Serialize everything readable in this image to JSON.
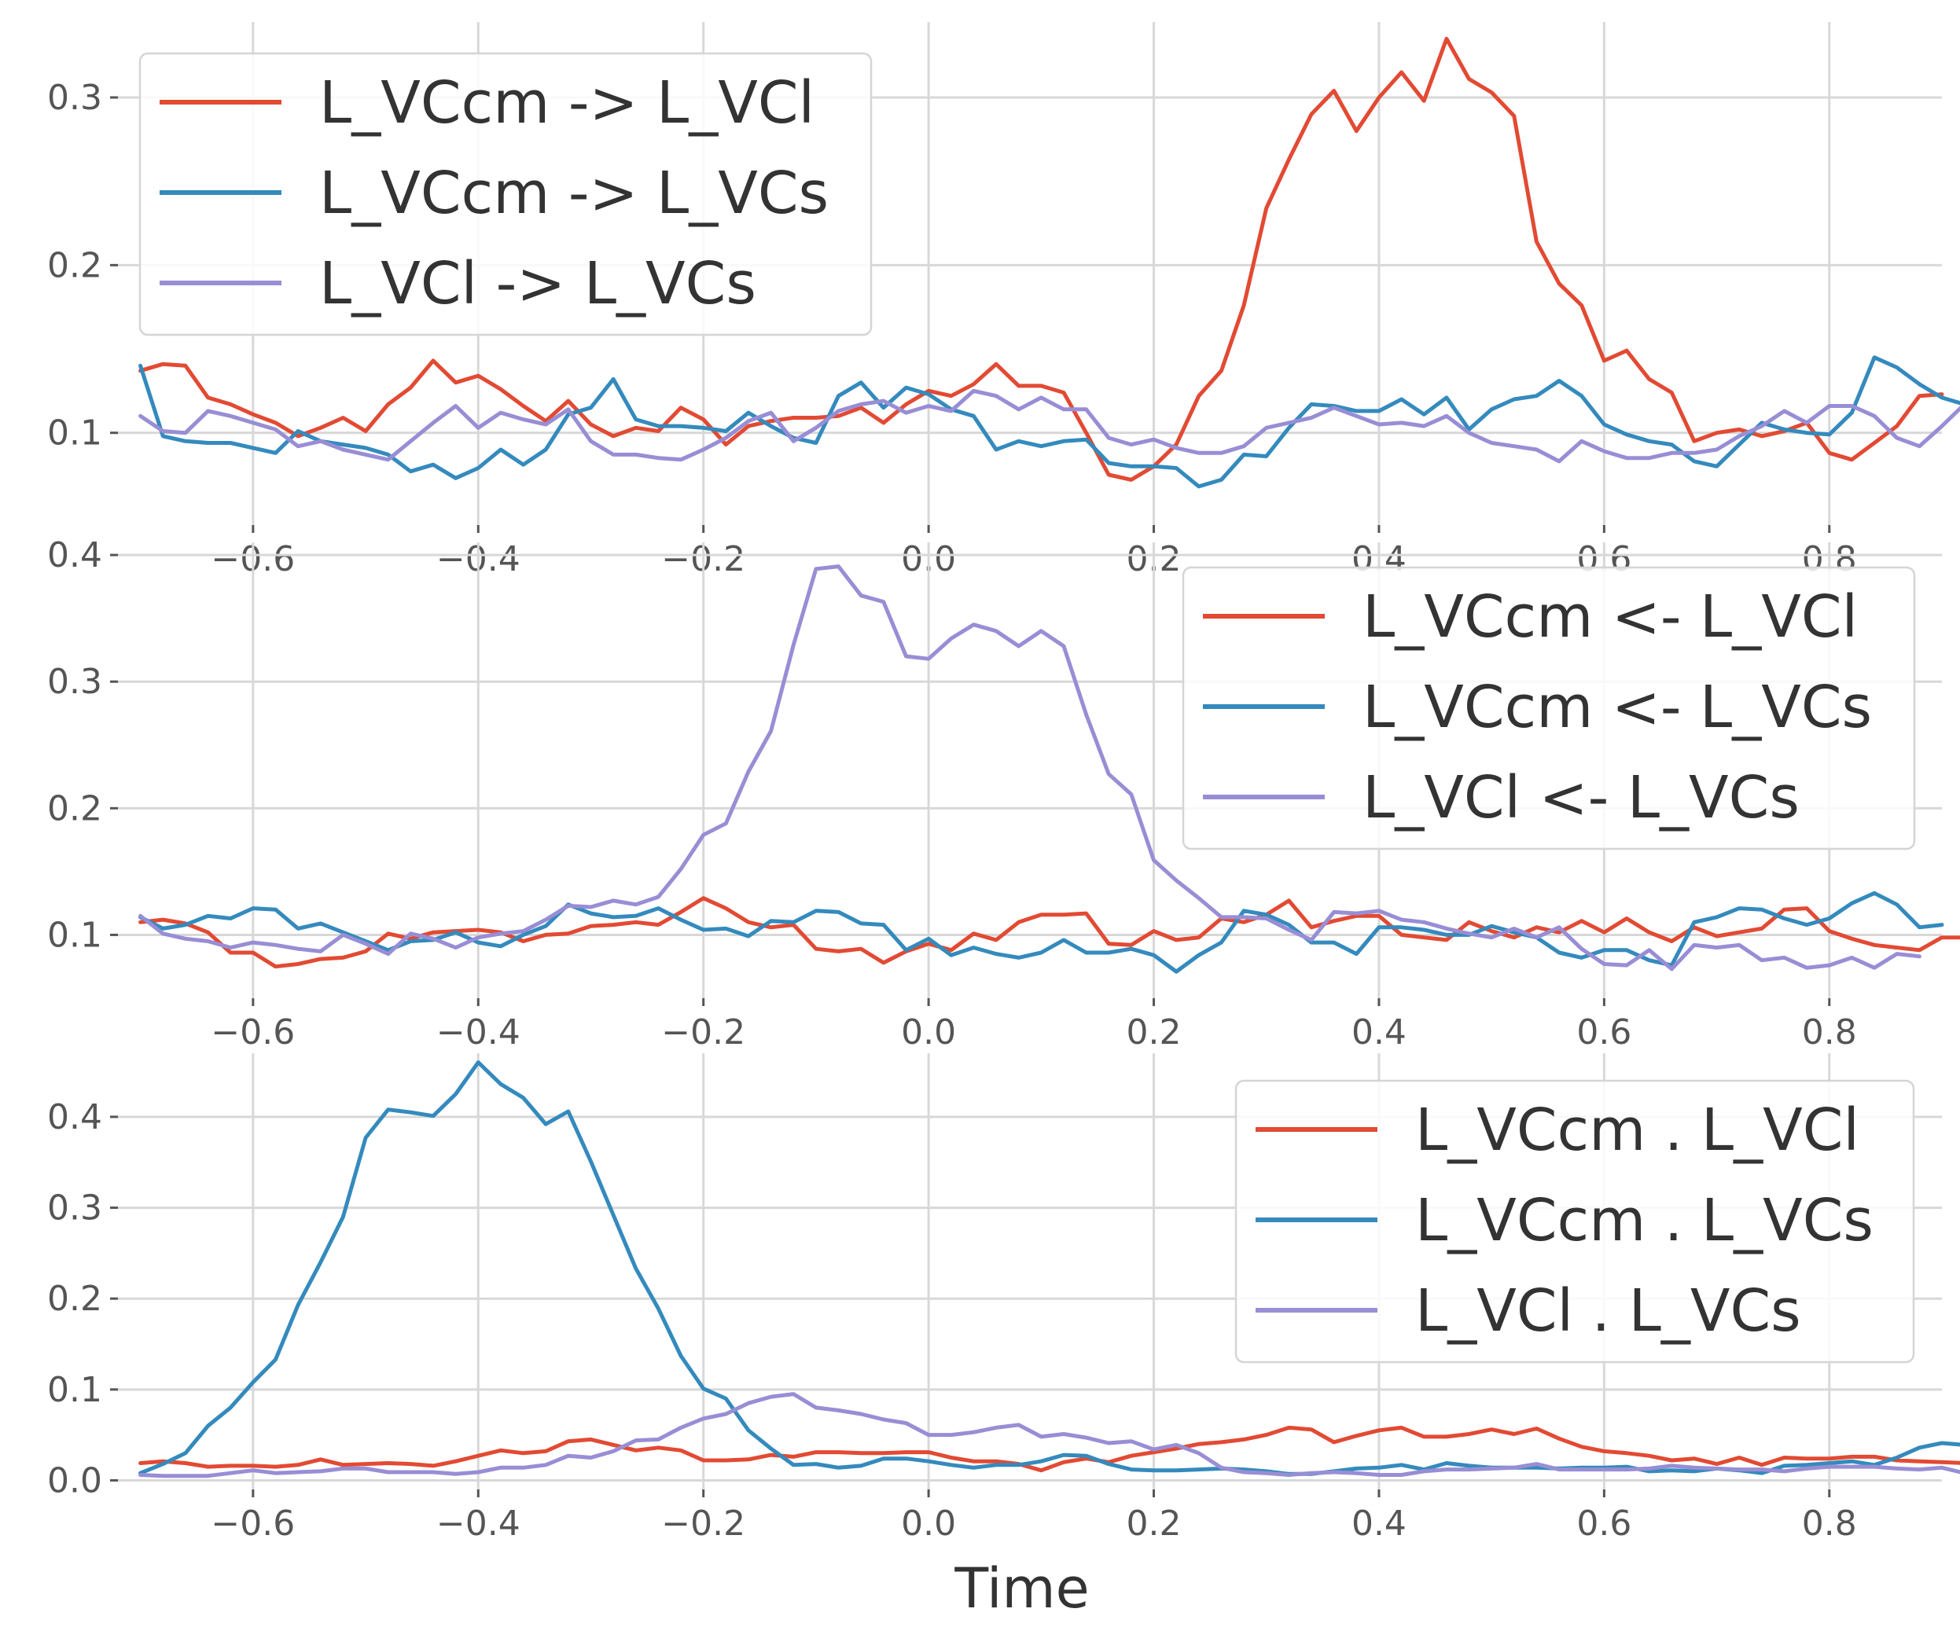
{
  "chart_data": [
    {
      "type": "line",
      "xlim": [
        -0.72,
        0.9
      ],
      "ylim": [
        0.045,
        0.345
      ],
      "yticks": [
        0.1,
        0.2,
        0.3
      ],
      "yticklabels": [
        "0.1",
        "0.2",
        "0.3"
      ],
      "xticks": [
        -0.6,
        -0.4,
        -0.2,
        0.0,
        0.2,
        0.4,
        0.6,
        0.8
      ],
      "xticklabels": [
        "−0.6",
        "−0.4",
        "−0.2",
        "0.0",
        "0.2",
        "0.4",
        "0.6",
        "0.8"
      ],
      "xlabel": "",
      "grid": true,
      "legend_position": "top-left",
      "x_start": -0.7,
      "x_step": 0.02,
      "series": [
        {
          "name": "L_VCcm -> L_VCl",
          "color": "#E24A33",
          "values": [
            0.137,
            0.141,
            0.14,
            0.121,
            0.117,
            0.111,
            0.106,
            0.098,
            0.103,
            0.109,
            0.101,
            0.117,
            0.127,
            0.143,
            0.13,
            0.134,
            0.126,
            0.116,
            0.107,
            0.119,
            0.105,
            0.098,
            0.103,
            0.101,
            0.115,
            0.108,
            0.093,
            0.104,
            0.107,
            0.109,
            0.109,
            0.11,
            0.115,
            0.106,
            0.117,
            0.125,
            0.122,
            0.129,
            0.141,
            0.128,
            0.128,
            0.124,
            0.1,
            0.075,
            0.072,
            0.08,
            0.093,
            0.122,
            0.137,
            0.176,
            0.234,
            0.263,
            0.29,
            0.304,
            0.28,
            0.3,
            0.315,
            0.298,
            0.335,
            0.311,
            0.303,
            0.289,
            0.214,
            0.189,
            0.176,
            0.143,
            0.149,
            0.132,
            0.124,
            0.095,
            0.1,
            0.102,
            0.098,
            0.101,
            0.106,
            0.088,
            0.084,
            0.094,
            0.104,
            0.122,
            0.123
          ]
        },
        {
          "name": "L_VCcm -> L_VCs",
          "color": "#348ABD",
          "values": [
            0.14,
            0.098,
            0.095,
            0.094,
            0.094,
            0.091,
            0.088,
            0.101,
            0.095,
            0.093,
            0.091,
            0.087,
            0.077,
            0.081,
            0.073,
            0.079,
            0.09,
            0.081,
            0.09,
            0.111,
            0.115,
            0.132,
            0.108,
            0.104,
            0.104,
            0.103,
            0.101,
            0.112,
            0.104,
            0.097,
            0.094,
            0.122,
            0.13,
            0.115,
            0.127,
            0.123,
            0.114,
            0.11,
            0.09,
            0.095,
            0.092,
            0.095,
            0.096,
            0.082,
            0.08,
            0.08,
            0.079,
            0.068,
            0.072,
            0.087,
            0.086,
            0.103,
            0.117,
            0.116,
            0.113,
            0.113,
            0.12,
            0.111,
            0.121,
            0.102,
            0.114,
            0.12,
            0.122,
            0.131,
            0.122,
            0.105,
            0.099,
            0.095,
            0.093,
            0.083,
            0.08,
            0.093,
            0.106,
            0.102,
            0.1,
            0.099,
            0.112,
            0.145,
            0.139,
            0.129,
            0.121,
            0.117
          ]
        },
        {
          "name": "L_VCl -> L_VCs",
          "color": "#988ED5",
          "values": [
            0.11,
            0.101,
            0.1,
            0.113,
            0.11,
            0.106,
            0.102,
            0.092,
            0.095,
            0.09,
            0.087,
            0.084,
            0.095,
            0.106,
            0.116,
            0.103,
            0.112,
            0.108,
            0.105,
            0.114,
            0.095,
            0.087,
            0.087,
            0.085,
            0.084,
            0.09,
            0.097,
            0.107,
            0.112,
            0.095,
            0.103,
            0.113,
            0.117,
            0.119,
            0.112,
            0.116,
            0.113,
            0.125,
            0.122,
            0.114,
            0.121,
            0.114,
            0.114,
            0.097,
            0.093,
            0.096,
            0.091,
            0.088,
            0.088,
            0.092,
            0.103,
            0.106,
            0.109,
            0.115,
            0.11,
            0.105,
            0.106,
            0.104,
            0.11,
            0.1,
            0.094,
            0.092,
            0.09,
            0.083,
            0.095,
            0.089,
            0.085,
            0.085,
            0.088,
            0.088,
            0.09,
            0.098,
            0.104,
            0.113,
            0.106,
            0.116,
            0.116,
            0.11,
            0.097,
            0.092,
            0.104,
            0.117
          ]
        }
      ]
    },
    {
      "type": "line",
      "xlim": [
        -0.72,
        0.9
      ],
      "ylim": [
        0.05,
        0.41
      ],
      "yticks": [
        0.1,
        0.2,
        0.3,
        0.4
      ],
      "yticklabels": [
        "0.1",
        "0.2",
        "0.3",
        "0.4"
      ],
      "xticks": [
        -0.6,
        -0.4,
        -0.2,
        0.0,
        0.2,
        0.4,
        0.6,
        0.8
      ],
      "xticklabels": [
        "−0.6",
        "−0.4",
        "−0.2",
        "0.0",
        "0.2",
        "0.4",
        "0.6",
        "0.8"
      ],
      "xlabel": "",
      "grid": true,
      "legend_position": "top-right",
      "x_start": -0.7,
      "x_step": 0.02,
      "series": [
        {
          "name": "L_VCcm <- L_VCl",
          "color": "#E24A33",
          "values": [
            0.11,
            0.112,
            0.109,
            0.102,
            0.086,
            0.086,
            0.075,
            0.077,
            0.081,
            0.082,
            0.087,
            0.101,
            0.097,
            0.102,
            0.103,
            0.104,
            0.102,
            0.095,
            0.1,
            0.101,
            0.107,
            0.108,
            0.11,
            0.108,
            0.118,
            0.129,
            0.121,
            0.11,
            0.106,
            0.108,
            0.089,
            0.087,
            0.089,
            0.078,
            0.087,
            0.093,
            0.088,
            0.101,
            0.096,
            0.11,
            0.116,
            0.116,
            0.117,
            0.093,
            0.092,
            0.103,
            0.096,
            0.098,
            0.113,
            0.11,
            0.116,
            0.127,
            0.106,
            0.111,
            0.115,
            0.115,
            0.1,
            0.098,
            0.096,
            0.11,
            0.103,
            0.098,
            0.106,
            0.102,
            0.111,
            0.102,
            0.113,
            0.102,
            0.095,
            0.106,
            0.099,
            0.102,
            0.105,
            0.12,
            0.121,
            0.103,
            0.097,
            0.092,
            0.09,
            0.088,
            0.098,
            0.098,
            0.111
          ]
        },
        {
          "name": "L_VCcm <- L_VCs",
          "color": "#348ABD",
          "values": [
            0.114,
            0.105,
            0.108,
            0.115,
            0.113,
            0.121,
            0.12,
            0.105,
            0.109,
            0.102,
            0.095,
            0.088,
            0.095,
            0.096,
            0.102,
            0.094,
            0.091,
            0.1,
            0.107,
            0.124,
            0.117,
            0.114,
            0.115,
            0.121,
            0.112,
            0.104,
            0.105,
            0.099,
            0.111,
            0.11,
            0.119,
            0.118,
            0.109,
            0.108,
            0.088,
            0.097,
            0.084,
            0.09,
            0.085,
            0.082,
            0.086,
            0.096,
            0.086,
            0.086,
            0.089,
            0.084,
            0.071,
            0.084,
            0.094,
            0.119,
            0.116,
            0.108,
            0.094,
            0.094,
            0.085,
            0.106,
            0.106,
            0.104,
            0.1,
            0.1,
            0.107,
            0.102,
            0.098,
            0.086,
            0.082,
            0.088,
            0.088,
            0.08,
            0.076,
            0.11,
            0.114,
            0.121,
            0.12,
            0.113,
            0.108,
            0.113,
            0.125,
            0.133,
            0.124,
            0.106,
            0.108
          ]
        },
        {
          "name": "L_VCl <- L_VCs",
          "color": "#988ED5",
          "values": [
            0.115,
            0.101,
            0.097,
            0.095,
            0.09,
            0.094,
            0.092,
            0.089,
            0.087,
            0.1,
            0.093,
            0.085,
            0.101,
            0.097,
            0.09,
            0.098,
            0.101,
            0.103,
            0.112,
            0.123,
            0.122,
            0.127,
            0.124,
            0.13,
            0.152,
            0.179,
            0.188,
            0.229,
            0.261,
            0.329,
            0.389,
            0.391,
            0.368,
            0.363,
            0.32,
            0.318,
            0.334,
            0.345,
            0.34,
            0.328,
            0.34,
            0.328,
            0.274,
            0.227,
            0.211,
            0.159,
            0.143,
            0.129,
            0.114,
            0.114,
            0.113,
            0.104,
            0.096,
            0.118,
            0.117,
            0.119,
            0.112,
            0.11,
            0.105,
            0.101,
            0.098,
            0.105,
            0.098,
            0.106,
            0.089,
            0.077,
            0.076,
            0.088,
            0.073,
            0.092,
            0.09,
            0.092,
            0.08,
            0.082,
            0.074,
            0.076,
            0.082,
            0.074,
            0.085,
            0.083
          ]
        }
      ]
    },
    {
      "type": "line",
      "xlim": [
        -0.72,
        0.9
      ],
      "ylim": [
        -0.01,
        0.47
      ],
      "yticks": [
        0.0,
        0.1,
        0.2,
        0.3,
        0.4
      ],
      "yticklabels": [
        "0.0",
        "0.1",
        "0.2",
        "0.3",
        "0.4"
      ],
      "xticks": [
        -0.6,
        -0.4,
        -0.2,
        0.0,
        0.2,
        0.4,
        0.6,
        0.8
      ],
      "xticklabels": [
        "−0.6",
        "−0.4",
        "−0.2",
        "0.0",
        "0.2",
        "0.4",
        "0.6",
        "0.8"
      ],
      "xlabel": "Time",
      "grid": true,
      "legend_position": "top-right",
      "x_start": -0.7,
      "x_step": 0.02,
      "series": [
        {
          "name": "L_VCcm . L_VCl",
          "color": "#E24A33",
          "values": [
            0.019,
            0.021,
            0.019,
            0.015,
            0.016,
            0.016,
            0.015,
            0.017,
            0.023,
            0.017,
            0.018,
            0.019,
            0.018,
            0.016,
            0.021,
            0.027,
            0.033,
            0.03,
            0.032,
            0.043,
            0.045,
            0.039,
            0.033,
            0.036,
            0.033,
            0.022,
            0.022,
            0.023,
            0.028,
            0.026,
            0.031,
            0.031,
            0.03,
            0.03,
            0.031,
            0.031,
            0.025,
            0.021,
            0.021,
            0.018,
            0.011,
            0.02,
            0.024,
            0.02,
            0.027,
            0.031,
            0.035,
            0.04,
            0.042,
            0.045,
            0.05,
            0.058,
            0.056,
            0.042,
            0.049,
            0.055,
            0.058,
            0.048,
            0.048,
            0.051,
            0.056,
            0.051,
            0.057,
            0.046,
            0.037,
            0.032,
            0.03,
            0.027,
            0.022,
            0.024,
            0.018,
            0.025,
            0.017,
            0.025,
            0.024,
            0.024,
            0.026,
            0.026,
            0.022,
            0.021,
            0.02,
            0.019
          ]
        },
        {
          "name": "L_VCcm . L_VCs",
          "color": "#348ABD",
          "values": [
            0.008,
            0.018,
            0.03,
            0.06,
            0.08,
            0.108,
            0.133,
            0.193,
            0.24,
            0.29,
            0.377,
            0.408,
            0.405,
            0.401,
            0.425,
            0.46,
            0.436,
            0.421,
            0.392,
            0.406,
            0.351,
            0.292,
            0.233,
            0.189,
            0.137,
            0.101,
            0.09,
            0.055,
            0.035,
            0.017,
            0.018,
            0.014,
            0.016,
            0.024,
            0.024,
            0.021,
            0.017,
            0.014,
            0.017,
            0.017,
            0.021,
            0.028,
            0.027,
            0.018,
            0.012,
            0.011,
            0.011,
            0.012,
            0.013,
            0.012,
            0.01,
            0.007,
            0.007,
            0.01,
            0.013,
            0.014,
            0.017,
            0.012,
            0.019,
            0.016,
            0.014,
            0.014,
            0.014,
            0.013,
            0.014,
            0.014,
            0.015,
            0.01,
            0.011,
            0.01,
            0.013,
            0.011,
            0.008,
            0.016,
            0.017,
            0.019,
            0.021,
            0.017,
            0.025,
            0.036,
            0.041,
            0.039
          ]
        },
        {
          "name": "L_VCl . L_VCs",
          "color": "#988ED5",
          "values": [
            0.006,
            0.005,
            0.005,
            0.005,
            0.008,
            0.011,
            0.008,
            0.009,
            0.01,
            0.013,
            0.013,
            0.009,
            0.009,
            0.009,
            0.007,
            0.009,
            0.014,
            0.014,
            0.017,
            0.027,
            0.025,
            0.032,
            0.044,
            0.045,
            0.058,
            0.068,
            0.073,
            0.085,
            0.092,
            0.095,
            0.08,
            0.077,
            0.073,
            0.067,
            0.063,
            0.05,
            0.05,
            0.053,
            0.058,
            0.061,
            0.048,
            0.051,
            0.047,
            0.041,
            0.043,
            0.034,
            0.039,
            0.03,
            0.014,
            0.009,
            0.008,
            0.006,
            0.008,
            0.009,
            0.008,
            0.006,
            0.006,
            0.01,
            0.012,
            0.012,
            0.013,
            0.014,
            0.018,
            0.012,
            0.012,
            0.012,
            0.012,
            0.013,
            0.016,
            0.014,
            0.013,
            0.012,
            0.012,
            0.01,
            0.013,
            0.015,
            0.015,
            0.015,
            0.013,
            0.012,
            0.014,
            0.008
          ]
        }
      ]
    }
  ]
}
